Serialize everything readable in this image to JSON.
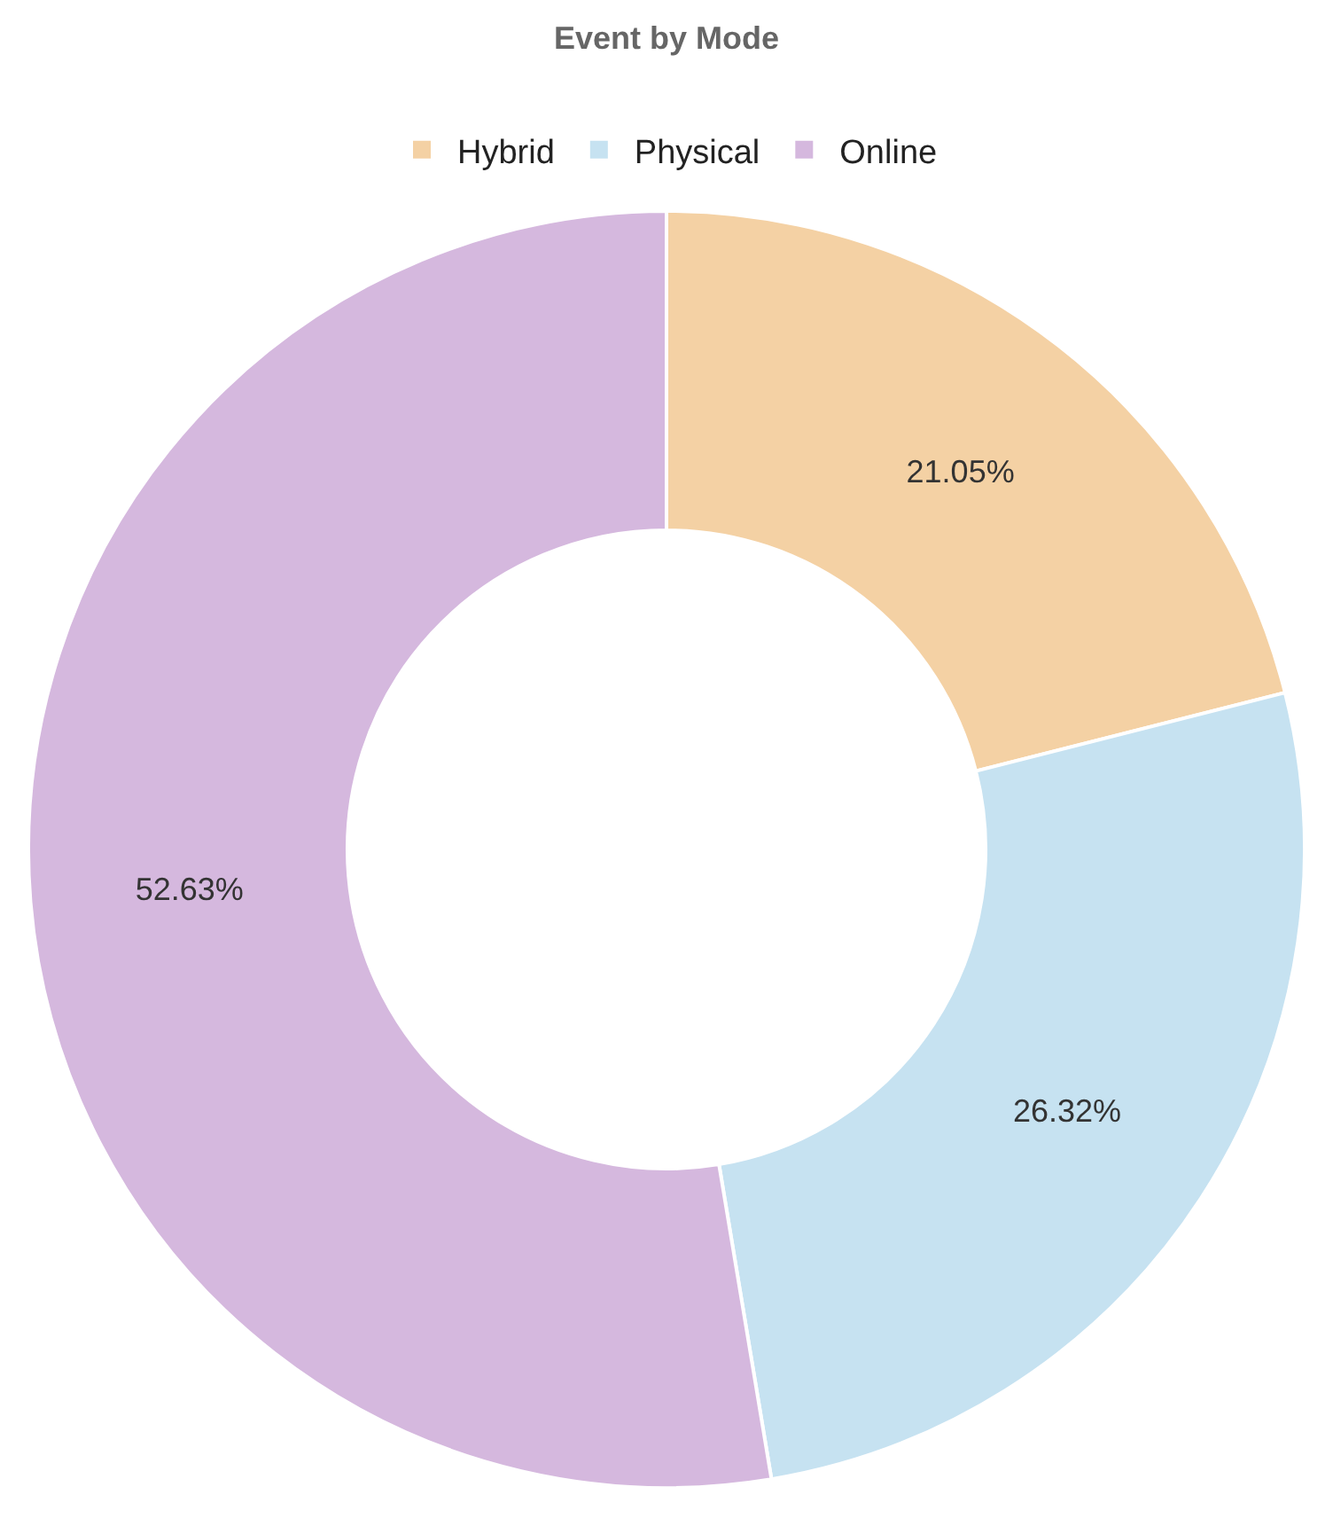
{
  "chart_data": {
    "type": "donut",
    "title": "Event by Mode",
    "categories": [
      "Hybrid",
      "Physical",
      "Online"
    ],
    "values": [
      21.05,
      26.32,
      52.63
    ],
    "value_labels": [
      "21.05%",
      "26.32%",
      "52.63%"
    ],
    "colors": [
      "#f4d1a4",
      "#c6e2f1",
      "#d5b8de"
    ],
    "legend": "top"
  }
}
